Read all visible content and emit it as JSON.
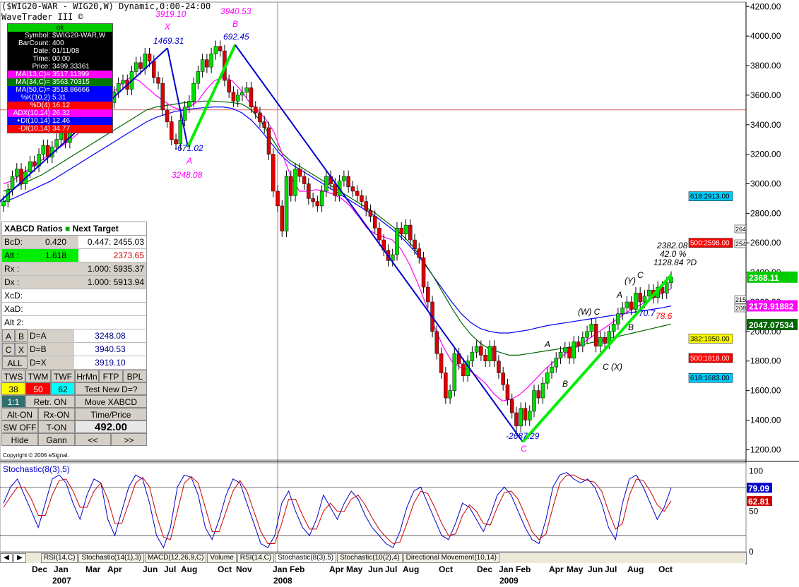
{
  "header": {
    "title": "($WIG20-WAR - WIG20,W) Dynamic,0:00-24:00",
    "subtitle": "WaveTrader III ©"
  },
  "data_window": {
    "status": "ok",
    "rows": [
      {
        "k": "Symbol:",
        "v": "$WIG20-WAR,W",
        "color": "#000000"
      },
      {
        "k": "BarCount:",
        "v": "400",
        "color": "#000000"
      },
      {
        "k": "Date:",
        "v": "01/11/08",
        "color": "#000000"
      },
      {
        "k": "Time:",
        "v": "00:00",
        "color": "#000000"
      },
      {
        "k": "Price:",
        "v": "3499.33361",
        "color": "#000000"
      },
      {
        "k": "MA(13,C)=",
        "v": "3517.11399",
        "color": "#ff00ff"
      },
      {
        "k": "MA(34,C)=",
        "v": "3563.70315",
        "color": "#007700"
      },
      {
        "k": "MA(50,C)=",
        "v": "3518.86666",
        "color": "#0000ff"
      },
      {
        "k": "%K(10,2)",
        "v": "5.31",
        "color": "#0000ff"
      },
      {
        "k": "%D(4)",
        "v": "16.12",
        "color": "#ff0000"
      },
      {
        "k": "ADX(10,14)",
        "v": "26.32",
        "color": "#ff00ff"
      },
      {
        "k": "+DI(10,14)",
        "v": "12.46",
        "color": "#0000ff"
      },
      {
        "k": "-DI(10,14)",
        "v": "34.77",
        "color": "#ff0000"
      }
    ]
  },
  "panel": {
    "title": "XABCD Ratios",
    "next_target": "Next Target",
    "bcd_label": "BcD:",
    "bcd_val": "0.420",
    "bcd_target": "0.447: 2455.03",
    "alt_label": "Alt :",
    "alt_val": "1.618",
    "alt_target": "2373.65",
    "rx_label": "Rx :",
    "rx_target": "1.000: 5935.37",
    "dx_label": "Dx :",
    "dx_target": "1.000: 5913.94",
    "xcd_label": "XcD:",
    "xad_label": "XaD:",
    "alt2_label": "Alt 2:",
    "ab_a": "A",
    "ab_b": "B",
    "ab_eq": "D=A",
    "ab_val": "3248.08",
    "cx_c": "C",
    "cx_x": "X",
    "cx_eq": "D=B",
    "cx_val": "3940.53",
    "all_label": "ALL",
    "all_eq": "D=X",
    "all_val": "3919.10",
    "btn_tws": "TWS",
    "btn_twm": "TWM",
    "btn_twf": "TWF",
    "btn_hrmn": "HrMn",
    "btn_ftp": "FTP",
    "btn_bpl": "BPL",
    "tws_val": "38",
    "twm_val": "50",
    "twf_val": "62",
    "test_new": "Test New D=?",
    "ratio_11": "1:1",
    "retr_on": "Retr. ON",
    "move_xabcd": "Move XABCD",
    "alt_on": "Alt-ON",
    "rx_on": "Rx-ON",
    "time_price": "Time/Price",
    "sw_off": "SW OFF",
    "t_on": "T-ON",
    "price_display": "492.00",
    "hide": "Hide",
    "gann": "Gann",
    "prev": "<<",
    "next": ">>"
  },
  "copyright": "Copyright © 2006 eSignal.",
  "tabs": [
    "RSI(14,C)",
    "Stochastic(14(1),3)",
    "MACD(12,26,9,C)",
    "Volume",
    "RSI(14,C)",
    "Stochastic(8(3),5)",
    "Stochastic(10(2),4)",
    "Directional Movement(10,14)"
  ],
  "chart_data": [
    {
      "type": "candlestick",
      "title": "($WIG20-WAR - WIG20,W) Dynamic,0:00-24:00",
      "y_ticks": [
        "4200.00",
        "4000.00",
        "3800.00",
        "3600.00",
        "3400.00",
        "3200.00",
        "3000.00",
        "2800.00",
        "2600.00",
        "2400.00",
        "2200.00",
        "2000.00",
        "1800.00",
        "1600.00",
        "1400.00",
        "1200.00"
      ],
      "ylim": [
        1130,
        4230
      ],
      "x_tick_labels": [
        "Dec",
        "Jan",
        "Mar",
        "Apr",
        "Jun",
        "Jul",
        "Aug",
        "Oct",
        "Nov",
        "Jan",
        "Feb",
        "Apr",
        "May",
        "Jun",
        "Jul",
        "Aug",
        "Oct",
        "Dec",
        "Jan",
        "Feb",
        "Apr",
        "May",
        "Jun",
        "Jul",
        "Aug",
        "Oct"
      ],
      "x_year_labels": [
        "2007",
        "2008",
        "2009"
      ],
      "horizontal_line": 3500,
      "current_price": "2368.11",
      "price_tags": [
        {
          "label": "2368.11",
          "value": 2368.11,
          "color": "#00cc00"
        },
        {
          "label": "2173.91882",
          "value": 2173.9,
          "color": "#ff00ff"
        },
        {
          "label": "2047.07534",
          "value": 2047.1,
          "color": "#006600"
        }
      ],
      "fib_tags": [
        {
          "label": "618:2913.00",
          "value": 2913,
          "color": "#00ccff"
        },
        {
          "label": "500:2598.00",
          "value": 2598,
          "color": "#ff0000"
        },
        {
          "label": "382:1950.00",
          "value": 1950,
          "color": "#ffff00"
        },
        {
          "label": "500:1818.00",
          "value": 1818,
          "color": "#ff0000"
        },
        {
          "label": "618:1683.00",
          "value": 1683,
          "color": "#00ccff"
        }
      ],
      "right_small_tags": [
        "264",
        "254",
        "215",
        "208"
      ],
      "wave_labels": [
        {
          "text": "3919.10",
          "color": "#ff00ff"
        },
        {
          "text": "X",
          "color": "#ff00ff"
        },
        {
          "text": "1469.31",
          "color": "#0000cc"
        },
        {
          "text": "3940.53",
          "color": "#ff00ff"
        },
        {
          "text": "B",
          "color": "#ff00ff"
        },
        {
          "text": "692.45",
          "color": "#0000cc"
        },
        {
          "text": "-671.02",
          "color": "#0000cc"
        },
        {
          "text": "A",
          "color": "#ff00ff"
        },
        {
          "text": "3248.08",
          "color": "#ff00ff"
        },
        {
          "text": "-2687.29",
          "color": "#0000cc"
        },
        {
          "text": "C",
          "color": "#ff00ff"
        },
        {
          "text": "2382.08",
          "color": "#000000"
        },
        {
          "text": "42.0 %",
          "color": "#000000"
        },
        {
          "text": "1128.84 ?D",
          "color": "#000000"
        },
        {
          "text": "(W) C",
          "color": "#000000"
        },
        {
          "text": "A",
          "color": "#000000"
        },
        {
          "text": "B",
          "color": "#000000"
        },
        {
          "text": "C (X)",
          "color": "#000000"
        },
        {
          "text": "(Y)",
          "color": "#000000"
        },
        {
          "text": "C",
          "color": "#000000"
        },
        {
          "text": "A",
          "color": "#000000"
        },
        {
          "text": "B",
          "color": "#000000"
        },
        {
          "text": "70.7",
          "color": "#0000cc"
        },
        {
          "text": "78.6",
          "color": "#ff0000"
        }
      ],
      "moving_averages": [
        "MA(13,C)",
        "MA(34,C)",
        "MA(50,C)"
      ],
      "ma_colors": {
        "ma13": "#ff00ff",
        "ma34": "#006600",
        "ma50": "#0000ff"
      },
      "candle_colors": {
        "up": "#00dd00",
        "down": "#dd0000"
      },
      "swing_points": [
        {
          "label": "X",
          "value": 3919.1
        },
        {
          "label": "A",
          "value": 3248.08
        },
        {
          "label": "B",
          "value": 3940.53
        },
        {
          "label": "C",
          "value": 1253
        },
        {
          "label": "D",
          "value": 2382.08
        }
      ],
      "close_series": [
        2880,
        2960,
        3050,
        3100,
        3000,
        3080,
        3150,
        3120,
        3200,
        3260,
        3180,
        3250,
        3300,
        3350,
        3280,
        3400,
        3450,
        3500,
        3420,
        3560,
        3520,
        3600,
        3580,
        3650,
        3550,
        3620,
        3680,
        3700,
        3640,
        3760,
        3820,
        3780,
        3880,
        3830,
        3720,
        3680,
        3500,
        3420,
        3300,
        3270,
        3430,
        3520,
        3560,
        3680,
        3760,
        3840,
        3790,
        3880,
        3930,
        3900,
        3700,
        3620,
        3560,
        3600,
        3620,
        3650,
        3520,
        3480,
        3420,
        3380,
        3200,
        2950,
        2850,
        2680,
        3050,
        2920,
        3100,
        3050,
        3000,
        2900,
        2880,
        2850,
        2950,
        3050,
        3000,
        2920,
        3020,
        3050,
        2980,
        2950,
        2920,
        2880,
        2820,
        2780,
        2700,
        2620,
        2550,
        2480,
        2520,
        2700,
        2660,
        2720,
        2620,
        2560,
        2500,
        2300,
        2200,
        2000,
        1850,
        1720,
        1550,
        1600,
        1850,
        1780,
        1700,
        1800,
        1860,
        1900,
        1840,
        1800,
        1900,
        1800,
        1720,
        1640,
        1540,
        1450,
        1360,
        1480,
        1400,
        1460,
        1600,
        1550,
        1650,
        1720,
        1760,
        1820,
        1860,
        1890,
        1820,
        1930,
        1900,
        1960,
        2000,
        2050,
        1900,
        1960,
        1920,
        2000,
        2050,
        2120,
        2160,
        2200,
        2150,
        2260,
        2200,
        2240,
        2280,
        2230,
        2300,
        2260,
        2330,
        2368
      ],
      "ma13_series": [
        3000,
        3020,
        3060,
        3100,
        3140,
        3180,
        3220,
        3260,
        3300,
        3350,
        3420,
        3500,
        3560,
        3620,
        3680,
        3720,
        3700,
        3650,
        3600,
        3560,
        3520,
        3500,
        3520,
        3560,
        3640,
        3700,
        3720,
        3700,
        3640,
        3560,
        3500,
        3440,
        3350,
        3200,
        3050,
        2950,
        2950,
        2960,
        2950,
        2930,
        2900,
        2850,
        2780,
        2700,
        2660,
        2640,
        2620,
        2560,
        2460,
        2330,
        2180,
        2030,
        1900,
        1800,
        1760,
        1740,
        1700,
        1650,
        1580,
        1530,
        1540,
        1570,
        1620,
        1680,
        1740,
        1790,
        1830,
        1870,
        1900,
        1940,
        1980,
        2020,
        2060,
        2100,
        2140,
        2170,
        2200,
        2230,
        2260,
        2290
      ],
      "ma34_series": [
        2950,
        2970,
        3000,
        3030,
        3060,
        3100,
        3140,
        3180,
        3220,
        3260,
        3300,
        3340,
        3380,
        3420,
        3460,
        3500,
        3520,
        3530,
        3540,
        3550,
        3555,
        3560,
        3560,
        3555,
        3550,
        3540,
        3500,
        3420,
        3320,
        3220,
        3160,
        3120,
        3080,
        3040,
        3000,
        2960,
        2920,
        2880,
        2840,
        2800,
        2750,
        2700,
        2640,
        2570,
        2480,
        2380,
        2270,
        2160,
        2060,
        1980,
        1920,
        1880,
        1860,
        1840,
        1840,
        1850,
        1860,
        1870,
        1880,
        1890,
        1900,
        1915,
        1930,
        1945,
        1960,
        1975,
        1990,
        2005,
        2020,
        2035,
        2050
      ],
      "ma50_series": [
        2880,
        2900,
        2930,
        2960,
        2990,
        3020,
        3060,
        3100,
        3140,
        3180,
        3220,
        3260,
        3300,
        3340,
        3380,
        3420,
        3450,
        3470,
        3490,
        3500,
        3510,
        3515,
        3520,
        3520,
        3510,
        3480,
        3430,
        3360,
        3280,
        3200,
        3140,
        3100,
        3060,
        3020,
        2980,
        2940,
        2900,
        2860,
        2820,
        2780,
        2730,
        2680,
        2620,
        2550,
        2470,
        2380,
        2290,
        2200,
        2120,
        2060,
        2020,
        2000,
        1990,
        1990,
        2000,
        2010,
        2025,
        2040,
        2050,
        2060,
        2070,
        2080,
        2090,
        2100,
        2110,
        2120,
        2130,
        2140,
        2150,
        2160,
        2173
      ]
    },
    {
      "type": "line",
      "title": "Stochastic(8(3),5)",
      "y_ticks": [
        "100",
        "50",
        "0"
      ],
      "ylim": [
        0,
        110
      ],
      "reference_lines": [
        80,
        20
      ],
      "current_values": [
        {
          "label": "79.09",
          "value": 79.09,
          "color": "#0000cc"
        },
        {
          "label": "62.81",
          "value": 62.81,
          "color": "#cc0000"
        }
      ],
      "series": [
        {
          "name": "%K",
          "color": "#0000cc",
          "values": [
            60,
            80,
            90,
            70,
            50,
            30,
            60,
            90,
            95,
            85,
            60,
            40,
            70,
            90,
            85,
            40,
            20,
            50,
            80,
            95,
            90,
            60,
            20,
            5,
            30,
            80,
            95,
            92,
            70,
            30,
            15,
            40,
            70,
            90,
            85,
            60,
            35,
            10,
            5,
            20,
            60,
            75,
            50,
            30,
            20,
            40,
            70,
            55,
            40,
            60,
            75,
            65,
            45,
            30,
            20,
            10,
            5,
            25,
            55,
            75,
            80,
            60,
            40,
            20,
            15,
            35,
            60,
            55,
            40,
            25,
            45,
            70,
            80,
            70,
            50,
            30,
            15,
            10,
            40,
            80,
            95,
            98,
            90,
            85,
            90,
            80,
            60,
            30,
            15,
            60,
            90,
            95,
            80,
            60,
            40,
            55,
            79
          ]
        },
        {
          "name": "%D",
          "color": "#cc0000",
          "values": [
            55,
            68,
            80,
            80,
            65,
            45,
            45,
            70,
            88,
            90,
            75,
            55,
            55,
            75,
            85,
            65,
            35,
            35,
            60,
            85,
            92,
            80,
            45,
            18,
            15,
            50,
            85,
            93,
            85,
            55,
            25,
            25,
            50,
            75,
            88,
            75,
            50,
            25,
            10,
            10,
            35,
            65,
            65,
            45,
            28,
            28,
            50,
            60,
            50,
            50,
            65,
            70,
            58,
            42,
            28,
            18,
            10,
            12,
            35,
            60,
            75,
            72,
            55,
            35,
            20,
            22,
            45,
            58,
            50,
            35,
            33,
            55,
            73,
            75,
            65,
            45,
            25,
            15,
            22,
            55,
            85,
            95,
            95,
            90,
            88,
            86,
            75,
            50,
            28,
            35,
            70,
            90,
            88,
            75,
            58,
            50,
            63
          ]
        }
      ]
    }
  ]
}
